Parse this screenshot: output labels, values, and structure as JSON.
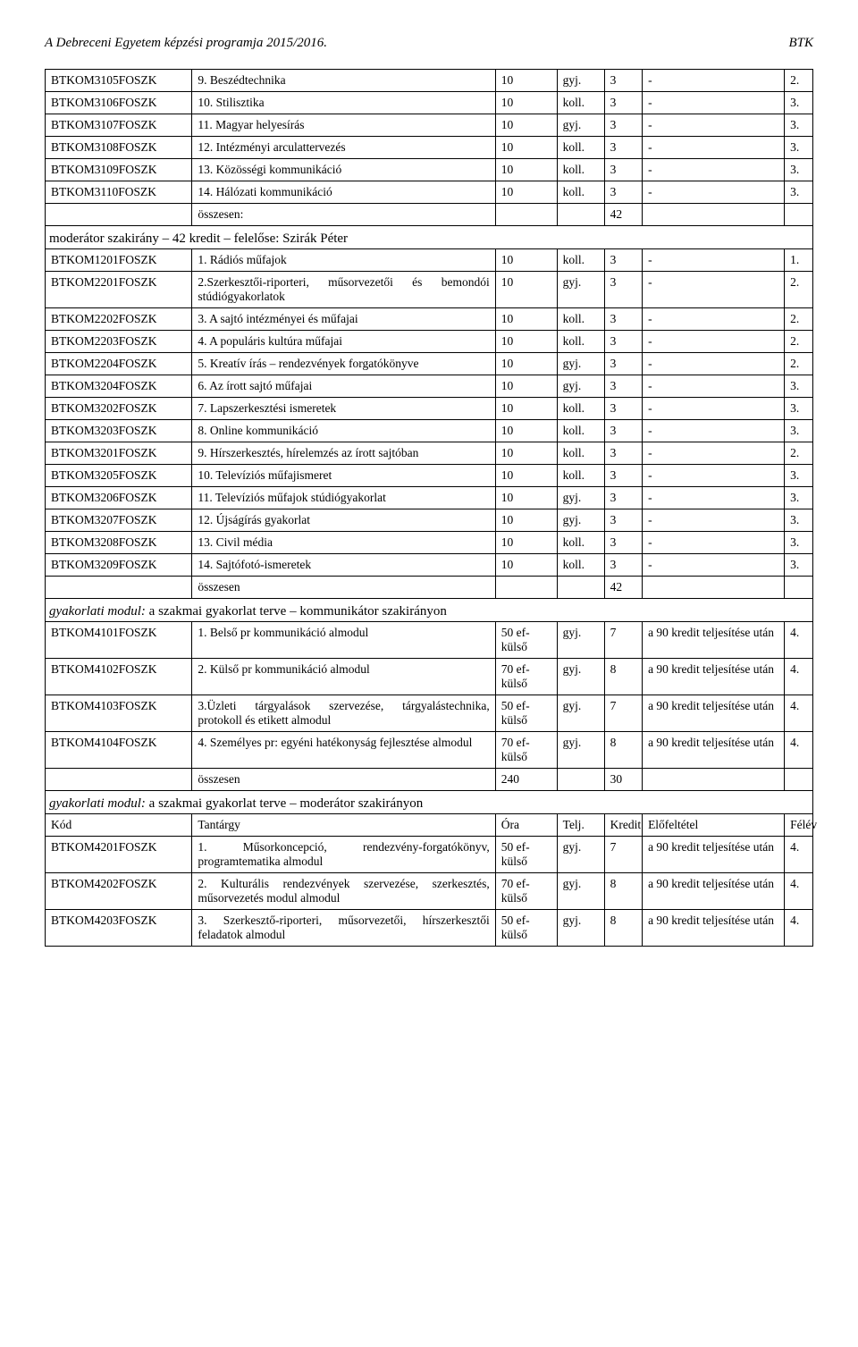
{
  "header": {
    "left": "A Debreceni Egyetem képzési programja 2015/2016.",
    "right": "BTK"
  },
  "cols": {
    "code": 155,
    "name": 320,
    "hours": 65,
    "type": 50,
    "credit": 40,
    "prereq": 150,
    "sem": 30
  },
  "rows1": [
    {
      "code": "BTKOM3105FOSZK",
      "name": "9. Beszédtechnika",
      "hours": "10",
      "type": "gyj.",
      "credit": "3",
      "prereq": "-",
      "sem": "2."
    },
    {
      "code": "BTKOM3106FOSZK",
      "name": "10. Stilisztika",
      "hours": "10",
      "type": "koll.",
      "credit": "3",
      "prereq": "-",
      "sem": "3."
    },
    {
      "code": "BTKOM3107FOSZK",
      "name": "11. Magyar helyesírás",
      "hours": "10",
      "type": "gyj.",
      "credit": "3",
      "prereq": "-",
      "sem": "3."
    },
    {
      "code": "BTKOM3108FOSZK",
      "name": "12. Intézményi arculattervezés",
      "hours": "10",
      "type": "koll.",
      "credit": "3",
      "prereq": "-",
      "sem": "3."
    },
    {
      "code": "BTKOM3109FOSZK",
      "name": "13. Közösségi kommunikáció",
      "hours": "10",
      "type": "koll.",
      "credit": "3",
      "prereq": "-",
      "sem": "3."
    },
    {
      "code": "BTKOM3110FOSZK",
      "name": "14. Hálózati kommunikáció",
      "hours": "10",
      "type": "koll.",
      "credit": "3",
      "prereq": "-",
      "sem": "3."
    }
  ],
  "total1": {
    "label": "összesen:",
    "value": "42"
  },
  "section2": "moderátor szakirány – 42 kredit – felelőse: Szirák Péter",
  "rows2": [
    {
      "code": "BTKOM1201FOSZK",
      "name": "1. Rádiós műfajok",
      "hours": "10",
      "type": "koll.",
      "credit": "3",
      "prereq": "-",
      "sem": "1."
    },
    {
      "code": "BTKOM2201FOSZK",
      "name": "2.Szerkesztői-riporteri, műsorvezetői és bemondói stúdiógyakorlatok",
      "hours": "10",
      "type": "gyj.",
      "credit": "3",
      "prereq": "-",
      "sem": "2."
    },
    {
      "code": "BTKOM2202FOSZK",
      "name": "3. A sajtó intézményei és műfajai",
      "hours": "10",
      "type": "koll.",
      "credit": "3",
      "prereq": "-",
      "sem": "2."
    },
    {
      "code": "BTKOM2203FOSZK",
      "name": "4. A populáris kultúra műfajai",
      "hours": "10",
      "type": "koll.",
      "credit": "3",
      "prereq": "-",
      "sem": "2."
    },
    {
      "code": "BTKOM2204FOSZK",
      "name": "5. Kreatív írás – rendezvények forgatókönyve",
      "hours": "10",
      "type": "gyj.",
      "credit": "3",
      "prereq": "-",
      "sem": "2."
    },
    {
      "code": "BTKOM3204FOSZK",
      "name": "6. Az írott sajtó műfajai",
      "hours": "10",
      "type": "gyj.",
      "credit": "3",
      "prereq": "-",
      "sem": "3."
    },
    {
      "code": "BTKOM3202FOSZK",
      "name": "7. Lapszerkesztési ismeretek",
      "hours": "10",
      "type": "koll.",
      "credit": "3",
      "prereq": "-",
      "sem": "3."
    },
    {
      "code": "BTKOM3203FOSZK",
      "name": "8. Online kommunikáció",
      "hours": "10",
      "type": "koll.",
      "credit": "3",
      "prereq": "-",
      "sem": "3."
    },
    {
      "code": "BTKOM3201FOSZK",
      "name": "9. Hírszerkesztés, hírelemzés az írott sajtóban",
      "hours": "10",
      "type": "koll.",
      "credit": "3",
      "prereq": "-",
      "sem": "2."
    },
    {
      "code": "BTKOM3205FOSZK",
      "name": "10. Televíziós műfajismeret",
      "hours": "10",
      "type": "koll.",
      "credit": "3",
      "prereq": "-",
      "sem": "3."
    },
    {
      "code": "BTKOM3206FOSZK",
      "name": "11. Televíziós műfajok stúdiógyakorlat",
      "hours": "10",
      "type": "gyj.",
      "credit": "3",
      "prereq": "-",
      "sem": "3."
    },
    {
      "code": "BTKOM3207FOSZK",
      "name": "12. Újságírás gyakorlat",
      "hours": "10",
      "type": "gyj.",
      "credit": "3",
      "prereq": "-",
      "sem": "3."
    },
    {
      "code": "BTKOM3208FOSZK",
      "name": "13. Civil média",
      "hours": "10",
      "type": "koll.",
      "credit": "3",
      "prereq": "-",
      "sem": "3."
    },
    {
      "code": "BTKOM3209FOSZK",
      "name": "14. Sajtófotó-ismeretek",
      "hours": "10",
      "type": "koll.",
      "credit": "3",
      "prereq": "-",
      "sem": "3."
    }
  ],
  "total2": {
    "label": "összesen",
    "value": "42"
  },
  "section3": "gyakorlati modul: a szakmai gyakorlat terve – kommunikátor szakirányon",
  "section3_italic_prefix": "gyakorlati modul:",
  "section3_rest": " a szakmai gyakorlat terve – kommunikátor szakirányon",
  "rows3": [
    {
      "code": "BTKOM4101FOSZK",
      "name": "1. Belső pr kommunikáció almodul",
      "hours": "50 ef-külső",
      "type": "gyj.",
      "credit": "7",
      "prereq": "a 90 kredit teljesítése után",
      "sem": "4."
    },
    {
      "code": "BTKOM4102FOSZK",
      "name": "2. Külső pr kommunikáció almodul",
      "hours": "70 ef-külső",
      "type": "gyj.",
      "credit": "8",
      "prereq": "a 90 kredit teljesítése után",
      "sem": "4."
    },
    {
      "code": "BTKOM4103FOSZK",
      "name": "3.Üzleti tárgyalások szervezése, tárgyalástechnika, protokoll és etikett almodul",
      "hours": "50 ef-külső",
      "type": "gyj.",
      "credit": "7",
      "prereq": "a 90 kredit teljesítése után",
      "sem": "4."
    },
    {
      "code": "BTKOM4104FOSZK",
      "name": "4. Személyes pr: egyéni hatékonyság fejlesztése almodul",
      "hours": "70 ef-külső",
      "type": "gyj.",
      "credit": "8",
      "prereq": "a 90 kredit teljesítése után",
      "sem": "4."
    }
  ],
  "total3": {
    "label": "összesen",
    "hours": "240",
    "credit": "30"
  },
  "section4_italic_prefix": "gyakorlati modul:",
  "section4_rest": " a szakmai gyakorlat terve – moderátor szakirányon",
  "header4": {
    "code": "Kód",
    "name": "Tantárgy",
    "hours": "Óra",
    "type": "Telj.",
    "credit": "Kredit",
    "prereq": "Előfeltétel",
    "sem": "Félév"
  },
  "rows4": [
    {
      "code": "BTKOM4201FOSZK",
      "name": "1. Műsorkoncepció, rendezvény-forgatókönyv, programtematika almodul",
      "hours": "50 ef-külső",
      "type": "gyj.",
      "credit": "7",
      "prereq": "a 90 kredit teljesítése után",
      "sem": "4."
    },
    {
      "code": "BTKOM4202FOSZK",
      "name": "2. Kulturális rendezvények szervezése, szerkesztés, műsorvezetés modul almodul",
      "hours": "70 ef-külső",
      "type": "gyj.",
      "credit": "8",
      "prereq": "a 90 kredit teljesítése után",
      "sem": "4."
    },
    {
      "code": "BTKOM4203FOSZK",
      "name": "3. Szerkesztő-riporteri, műsorvezetői, hírszerkesztői feladatok almodul",
      "hours": "50 ef-külső",
      "type": "gyj.",
      "credit": "8",
      "prereq": "a 90 kredit teljesítése után",
      "sem": "4."
    }
  ]
}
